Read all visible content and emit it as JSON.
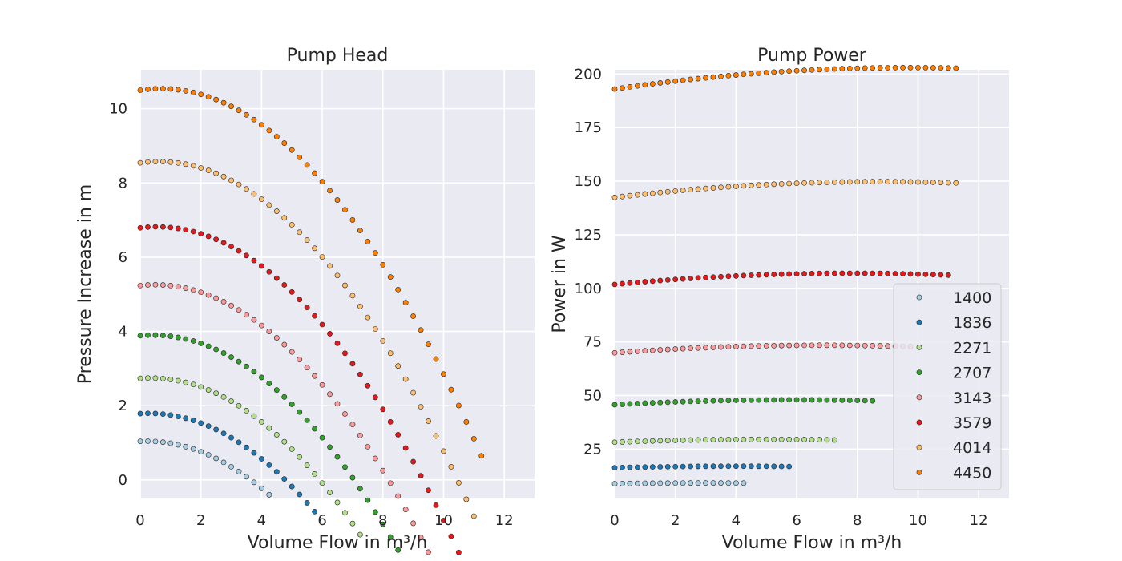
{
  "colors": {
    "axes_bg": "#eaeaf2",
    "grid": "#ffffff",
    "point_edge": "#262626",
    "series": [
      "#a6cee3",
      "#1f78b4",
      "#b2df8a",
      "#33a02c",
      "#fb9a99",
      "#e31a1c",
      "#fdbf6f",
      "#ff7f00"
    ]
  },
  "chart_data": [
    {
      "type": "scatter",
      "title": "Pump Head",
      "xlabel": "Volume Flow in m³/h",
      "ylabel": "Pressure Increase in m",
      "xlim": [
        0,
        13
      ],
      "ylim": [
        -0.5,
        11.05
      ],
      "xticks": [
        0,
        2,
        4,
        6,
        8,
        10,
        12
      ],
      "yticks": [
        0,
        2,
        4,
        6,
        8,
        10
      ],
      "grid": true,
      "model": "head",
      "series": [
        {
          "name": "1400",
          "rpm": 1400,
          "qmax": 4.25
        },
        {
          "name": "1836",
          "rpm": 1836,
          "qmax": 5.8
        },
        {
          "name": "2271",
          "rpm": 2271,
          "qmax": 7.3
        },
        {
          "name": "2707",
          "rpm": 2707,
          "qmax": 8.5
        },
        {
          "name": "3143",
          "rpm": 3143,
          "qmax": 9.8
        },
        {
          "name": "3579",
          "rpm": 3579,
          "qmax": 10.6
        },
        {
          "name": "4014",
          "rpm": 4014,
          "qmax": 11.1
        },
        {
          "name": "4450",
          "rpm": 4450,
          "qmax": 11.25
        }
      ]
    },
    {
      "type": "scatter",
      "title": "Pump Power",
      "xlabel": "Volume Flow in m³/h",
      "ylabel": "Power in W",
      "xlim": [
        0,
        13
      ],
      "ylim": [
        2,
        202
      ],
      "xticks": [
        0,
        2,
        4,
        6,
        8,
        10,
        12
      ],
      "yticks": [
        25,
        50,
        75,
        100,
        125,
        150,
        175,
        200
      ],
      "grid": true,
      "model": "power",
      "legend": "bottom-right",
      "series": [
        {
          "name": "1400",
          "rpm": 1400,
          "qmax": 4.25
        },
        {
          "name": "1836",
          "rpm": 1836,
          "qmax": 5.8
        },
        {
          "name": "2271",
          "rpm": 2271,
          "qmax": 7.3
        },
        {
          "name": "2707",
          "rpm": 2707,
          "qmax": 8.5
        },
        {
          "name": "3143",
          "rpm": 3143,
          "qmax": 9.8
        },
        {
          "name": "3579",
          "rpm": 3579,
          "qmax": 11.0
        },
        {
          "name": "4014",
          "rpm": 4014,
          "qmax": 11.3
        },
        {
          "name": "4450",
          "rpm": 4450,
          "qmax": 11.3
        }
      ]
    }
  ]
}
